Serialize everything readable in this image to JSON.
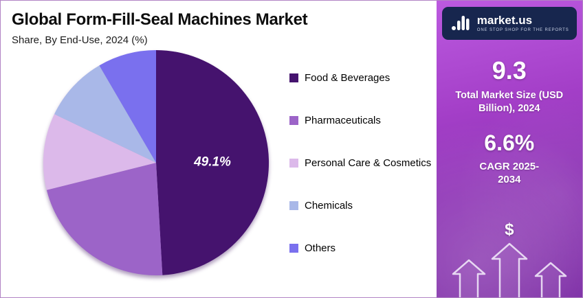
{
  "header": {
    "title": "Global Form-Fill-Seal Machines Market",
    "subtitle": "Share, By End-Use, 2024 (%)"
  },
  "chart_data": {
    "type": "pie",
    "title": "Global Form-Fill-Seal Machines Market",
    "subtitle": "Share, By End-Use, 2024 (%)",
    "categories": [
      "Food & Beverages",
      "Pharmaceuticals",
      "Personal Care & Cosmetics",
      "Chemicals",
      "Others"
    ],
    "values": [
      49.1,
      22.0,
      11.0,
      9.5,
      8.4
    ],
    "colors": [
      "#45136e",
      "#9c64c8",
      "#dcb9ea",
      "#a9b8e8",
      "#7a70ee"
    ],
    "labeled_slice": {
      "category": "Food & Beverages",
      "label": "49.1%"
    },
    "start_angle_deg": -90,
    "direction": "clockwise",
    "legend_position": "right"
  },
  "sidebar": {
    "logo": {
      "brand": "market.us",
      "tagline": "ONE STOP SHOP FOR THE REPORTS"
    },
    "stats": [
      {
        "value": "9.3",
        "label": "Total Market Size (USD Billion), 2024"
      },
      {
        "value": "6.6%",
        "label": "CAGR 2025-2034"
      }
    ],
    "dollar_symbol": "$",
    "colors": {
      "panel_top": "#bc5ae0",
      "panel_bottom": "#7b2aa4",
      "logo_bg": "#17264e"
    }
  }
}
